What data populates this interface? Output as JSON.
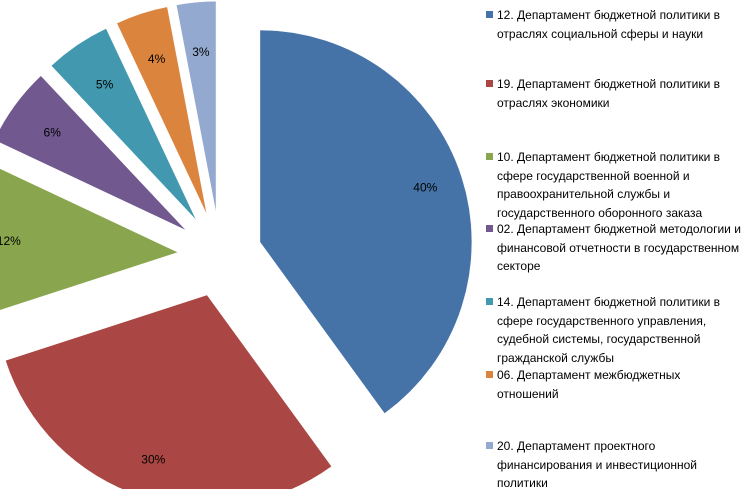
{
  "chart_data": {
    "type": "pie",
    "exploded": true,
    "legend_position": "right",
    "slices": [
      {
        "label": "12. Департамент бюджетной политики в отраслях социальной сферы и науки",
        "value": 40,
        "value_label": "40%",
        "color": "#4572A7"
      },
      {
        "label": "19. Департамент бюджетной политики в отраслях экономики",
        "value": 30,
        "value_label": "30%",
        "color": "#AA4643"
      },
      {
        "label": "10. Департамент бюджетной политики в сфере государственной военной и правоохранительной службы и государственного оборонного заказа",
        "value": 12,
        "value_label": "12%",
        "color": "#89A54E"
      },
      {
        "label": "02. Департамент бюджетной методологии и финансовой отчетности в государственном секторе",
        "value": 6,
        "value_label": "6%",
        "color": "#71588F"
      },
      {
        "label": "14. Департамент бюджетной политики в сфере государственного управления, судебной системы, государственной гражданской службы",
        "value": 5,
        "value_label": "5%",
        "color": "#4198AF"
      },
      {
        "label": "06. Департамент межбюджетных отношений",
        "value": 4,
        "value_label": "4%",
        "color": "#DB843D"
      },
      {
        "label": "20. Департамент проектного финансирования и инвестиционной политики",
        "value": 3,
        "value_label": "3%",
        "color": "#93A9CF"
      }
    ]
  }
}
